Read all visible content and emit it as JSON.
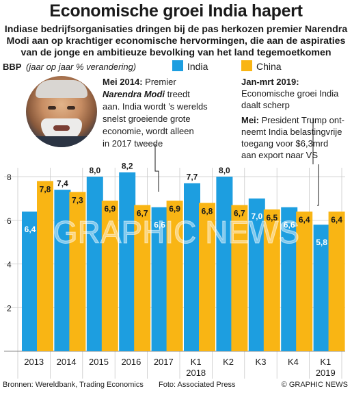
{
  "title": "Economische groei India hapert",
  "subtitle": "Indiase bedrijfsorganisaties dringen bij de pas herkozen premier Narendra Modi aan op krachtiger economische hervormingen, die aan de aspiraties van de jonge en ambitieuze bevolking van het land tegemoetkomen",
  "photo_credit": "Foto: Associated Press",
  "sources": "Bronnen: Wereldbank, Trading Economics",
  "copyright": "© GRAPHIC NEWS",
  "watermark": "GRAPHIC NEWS",
  "colors": {
    "india": "#1d9ee0",
    "china": "#f9b514",
    "grid": "#c8c8c8",
    "text": "#1a1a1a"
  },
  "chart_data": {
    "type": "bar",
    "ylabel_bold": "BBP",
    "ylabel_italic": "(jaar op jaar % verandering)",
    "ylim": [
      0,
      8.6
    ],
    "yticks": [
      2,
      4,
      6,
      8
    ],
    "categories": [
      "2013",
      "2014",
      "2015",
      "2016",
      "2017",
      "K1\n2018",
      "K2",
      "K3",
      "K4",
      "K1\n2019"
    ],
    "series": [
      {
        "name": "India",
        "values": [
          6.4,
          7.4,
          8.0,
          8.2,
          6.6,
          7.7,
          8.0,
          7.0,
          6.6,
          5.8
        ],
        "labels": [
          "6,4",
          "7,4",
          "8,0",
          "8,2",
          "6,6",
          "7,7",
          "8,0",
          "7,0",
          "6,6",
          "5,8"
        ]
      },
      {
        "name": "China",
        "values": [
          7.8,
          7.3,
          6.9,
          6.7,
          6.9,
          6.8,
          6.7,
          6.5,
          6.4,
          6.4
        ],
        "labels": [
          "7,8",
          "7,3",
          "6,9",
          "6,7",
          "6,9",
          "6,8",
          "6,7",
          "6,5",
          "6,4",
          "6,4"
        ]
      }
    ],
    "legend_placement": "top",
    "grid": true
  },
  "annotations": [
    {
      "id": "modi-2014",
      "bold": "Mei 2014:",
      "lines": [
        "Premier",
        "Narendra Modi treedt",
        "aan. India wordt ’s werelds",
        "snelst groeiende grote",
        "economie, wordt alleen",
        "in 2017 tweede"
      ],
      "bold_italic": "Narendra Modi"
    },
    {
      "id": "jan-mrt-2019",
      "bold": "Jan-mrt 2019:",
      "lines": [
        "Economische groei India",
        "daalt scherp"
      ]
    },
    {
      "id": "mei-trump",
      "bold": "Mei:",
      "lines": [
        "President Trump ont-",
        "neemt India belastingvrije",
        "toegang voor $6,3mrd",
        "aan export naar VS"
      ]
    }
  ]
}
